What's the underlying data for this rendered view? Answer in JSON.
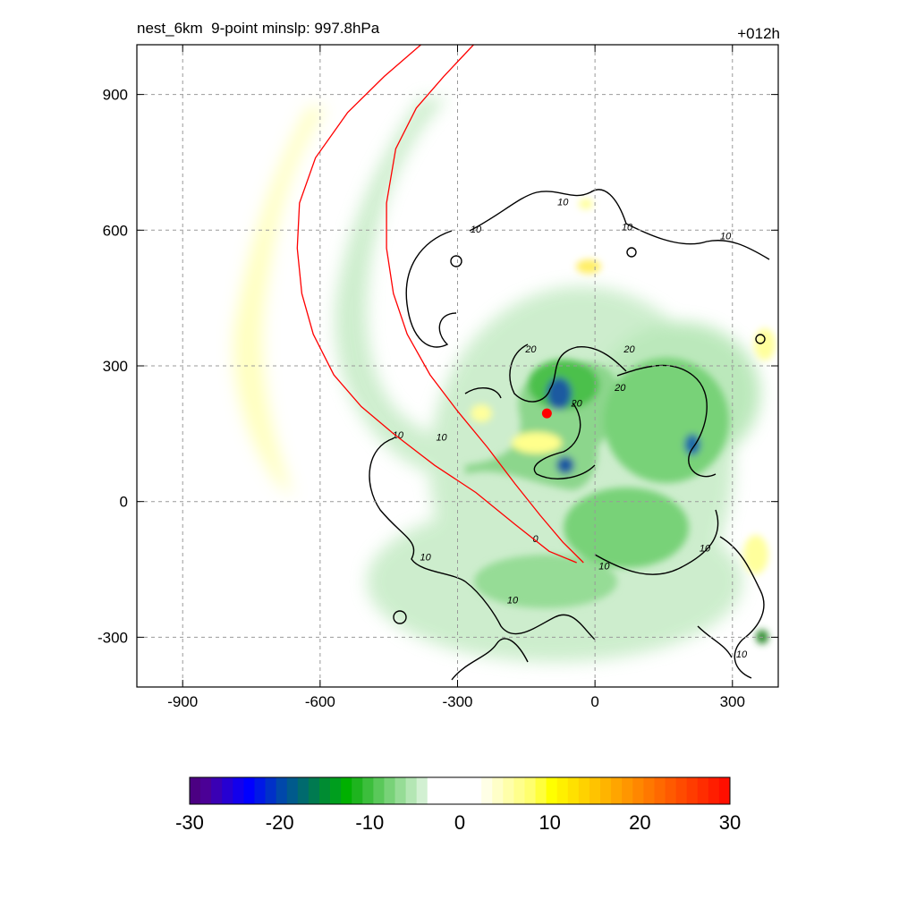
{
  "header": {
    "title_left": "nest_6km  9-point minslp: 997.8hPa",
    "title_right": "+012h"
  },
  "chart_data": {
    "type": "heatmap",
    "title": "nest_6km  9-point minslp: 997.8hPa",
    "forecast_hour": "+012h",
    "xlim": [
      -1000,
      400
    ],
    "ylim": [
      -410,
      1010
    ],
    "x_ticks": [
      -900,
      -600,
      -300,
      0,
      300
    ],
    "y_ticks": [
      900,
      600,
      300,
      0,
      -300
    ],
    "grid": true,
    "grid_style": "dashed",
    "colorbar": {
      "min": -30,
      "max": 30,
      "tick_values": [
        -30,
        -20,
        -10,
        0,
        10,
        20,
        30
      ],
      "tick_labels": [
        "-30",
        "-20",
        "-10",
        "0",
        "10",
        "20",
        "30"
      ],
      "colors": [
        "#4b0082",
        "#4b0096",
        "#3a00b4",
        "#2600d2",
        "#1300ec",
        "#0000ff",
        "#0018e6",
        "#0030c8",
        "#0048aa",
        "#005a8c",
        "#006a6e",
        "#007a50",
        "#008c32",
        "#009e1e",
        "#00b000",
        "#1eb41e",
        "#3cbe3c",
        "#5ac85a",
        "#78d278",
        "#96dc96",
        "#b4e6b4",
        "#d2f0d2",
        "#ffffff",
        "#ffffff",
        "#ffffff",
        "#ffffff",
        "#ffffff",
        "#ffffe6",
        "#ffffc8",
        "#ffffaa",
        "#ffff8c",
        "#ffff6e",
        "#ffff3c",
        "#ffff00",
        "#fff000",
        "#ffe100",
        "#ffd200",
        "#ffc300",
        "#ffb400",
        "#ffa500",
        "#ff9600",
        "#ff8700",
        "#ff7800",
        "#ff6900",
        "#ff5a00",
        "#ff4b00",
        "#ff3c00",
        "#ff2d00",
        "#ff1e00",
        "#ff0f00"
      ]
    },
    "contour_labels": [
      {
        "x": -70,
        "y": 655,
        "text": "10"
      },
      {
        "x": -260,
        "y": 595,
        "text": "10"
      },
      {
        "x": 70,
        "y": 600,
        "text": "10"
      },
      {
        "x": 285,
        "y": 580,
        "text": "10"
      },
      {
        "x": -140,
        "y": 330,
        "text": "20"
      },
      {
        "x": 75,
        "y": 330,
        "text": "20"
      },
      {
        "x": 55,
        "y": 245,
        "text": "20"
      },
      {
        "x": -40,
        "y": 210,
        "text": "20"
      },
      {
        "x": -430,
        "y": 140,
        "text": "10"
      },
      {
        "x": -335,
        "y": 135,
        "text": "10"
      },
      {
        "x": -130,
        "y": -90,
        "text": "0"
      },
      {
        "x": -370,
        "y": -130,
        "text": "10"
      },
      {
        "x": 20,
        "y": -150,
        "text": "10"
      },
      {
        "x": 240,
        "y": -110,
        "text": "10"
      },
      {
        "x": -180,
        "y": -225,
        "text": "10"
      },
      {
        "x": 320,
        "y": -345,
        "text": "10"
      }
    ],
    "storm_center": {
      "x": -105,
      "y": 195
    },
    "red_tracks": [
      {
        "points": [
          [
            -380,
            1010
          ],
          [
            -460,
            940
          ],
          [
            -540,
            860
          ],
          [
            -610,
            760
          ],
          [
            -645,
            660
          ],
          [
            -650,
            560
          ],
          [
            -640,
            460
          ],
          [
            -615,
            370
          ],
          [
            -570,
            280
          ],
          [
            -510,
            210
          ],
          [
            -440,
            150
          ],
          [
            -350,
            80
          ],
          [
            -260,
            20
          ],
          [
            -175,
            -50
          ],
          [
            -100,
            -110
          ],
          [
            -40,
            -135
          ]
        ]
      },
      {
        "points": [
          [
            -265,
            1010
          ],
          [
            -330,
            940
          ],
          [
            -390,
            870
          ],
          [
            -435,
            780
          ],
          [
            -455,
            660
          ],
          [
            -455,
            560
          ],
          [
            -440,
            460
          ],
          [
            -410,
            370
          ],
          [
            -360,
            280
          ],
          [
            -300,
            200
          ],
          [
            -235,
            120
          ],
          [
            -175,
            40
          ],
          [
            -120,
            -30
          ],
          [
            -70,
            -90
          ],
          [
            -25,
            -135
          ]
        ]
      }
    ]
  }
}
